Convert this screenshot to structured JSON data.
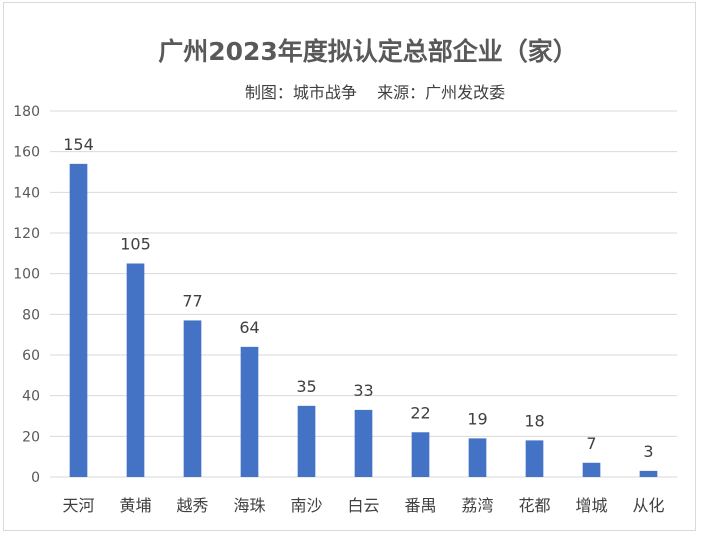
{
  "chart_data": {
    "type": "bar",
    "title": "广州2023年度拟认定总部企业（家）",
    "subtitle": "制图：城市战争    来源：广州发改委",
    "categories": [
      "天河",
      "黄埔",
      "越秀",
      "海珠",
      "南沙",
      "白云",
      "番禺",
      "荔湾",
      "花都",
      "增城",
      "从化"
    ],
    "values": [
      154,
      105,
      77,
      64,
      35,
      33,
      22,
      19,
      18,
      7,
      3
    ],
    "ylim": [
      0,
      180
    ],
    "yticks": [
      "0",
      "20",
      "40",
      "60",
      "80",
      "100",
      "120",
      "140",
      "160",
      "180"
    ],
    "grid": true,
    "legend": "none",
    "bar_color": "#4472c4",
    "xlabel": "",
    "ylabel": ""
  }
}
